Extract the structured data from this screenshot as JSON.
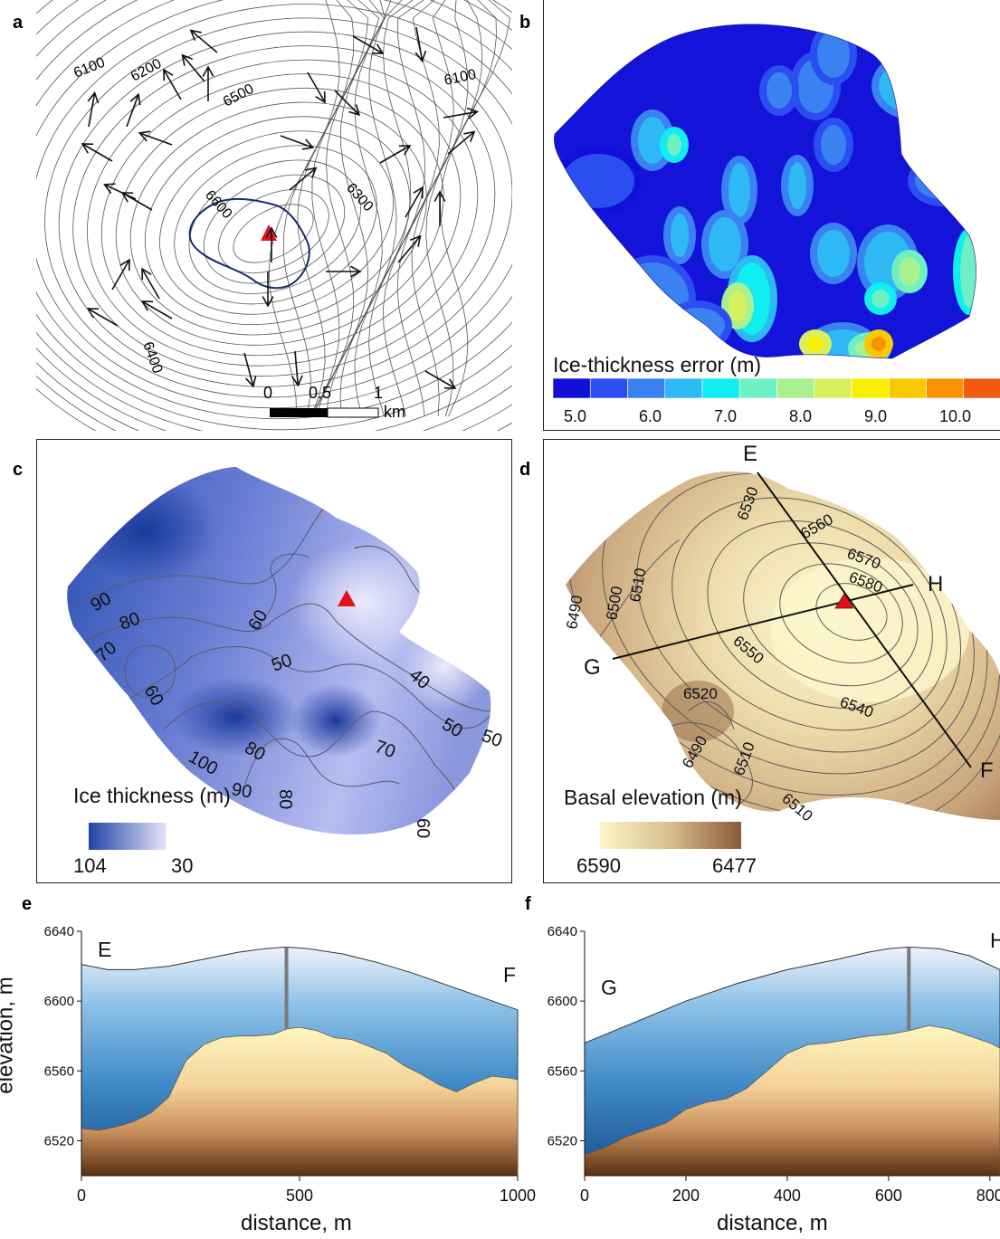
{
  "panels": {
    "a": {
      "letter": "a",
      "contour_labels": [
        "6100",
        "6200",
        "6500",
        "6100",
        "6600",
        "6300",
        "6400"
      ],
      "scalebar": {
        "ticks": [
          "0",
          "0.5",
          "1"
        ],
        "unit": "km"
      }
    },
    "b": {
      "letter": "b",
      "legend_title": "Ice-thickness error (m)",
      "colorbar_ticks": [
        "5.0",
        "6.0",
        "7.0",
        "8.0",
        "9.0",
        "10.0"
      ],
      "colors": [
        "#1010d8",
        "#2a4ef0",
        "#3a82f2",
        "#2eb8f4",
        "#11eef2",
        "#6ff0c2",
        "#a8f090",
        "#d6f060",
        "#f8f000",
        "#f8c800",
        "#f89400",
        "#f05a10"
      ]
    },
    "c": {
      "letter": "c",
      "legend_title": "Ice thickness (m)",
      "legend_min": "104",
      "legend_max": "30",
      "contour_labels": [
        "90",
        "80",
        "70",
        "60",
        "50",
        "60",
        "40",
        "80",
        "100",
        "90",
        "80",
        "70",
        "50",
        "50",
        "60"
      ],
      "colors": {
        "dark": "#1f44a8",
        "light": "#e6e6fb"
      }
    },
    "d": {
      "letter": "d",
      "legend_title": "Basal elevation (m)",
      "legend_min": "6590",
      "legend_max": "6477",
      "contour_labels": [
        "6530",
        "6560",
        "6570",
        "6580",
        "6510",
        "6500",
        "6490",
        "6550",
        "6520",
        "6540",
        "6490",
        "6510",
        "6510"
      ],
      "profile_points": {
        "E": "E",
        "F": "F",
        "G": "G",
        "H": "H"
      },
      "colors": {
        "light": "#fdf6c8",
        "dark": "#8a5a3a"
      }
    },
    "e": {
      "letter": "e",
      "start_label": "E",
      "end_label": "F",
      "ylabel": "elevation, m",
      "xlabel": "distance, m",
      "y_ticks": [
        "6640",
        "6600",
        "6560",
        "6520"
      ],
      "x_ticks": [
        "0",
        "500",
        "1000"
      ]
    },
    "f": {
      "letter": "f",
      "start_label": "G",
      "end_label": "H",
      "xlabel": "distance, m",
      "y_ticks": [
        "6640",
        "6600",
        "6560",
        "6520"
      ],
      "x_ticks": [
        "0",
        "200",
        "400",
        "600",
        "800"
      ]
    }
  },
  "chart_data": [
    {
      "type": "area",
      "panel": "e",
      "xlabel": "distance, m",
      "ylabel": "elevation, m",
      "xlim": [
        0,
        1000
      ],
      "ylim": [
        6500,
        6640
      ],
      "series": [
        {
          "name": "surface",
          "x": [
            0,
            60,
            120,
            200,
            280,
            360,
            420,
            470,
            520,
            600,
            680,
            760,
            840,
            920,
            1000
          ],
          "y": [
            6621,
            6618,
            6618,
            6620,
            6624,
            6628,
            6630,
            6631,
            6630,
            6627,
            6622,
            6616,
            6609,
            6602,
            6595
          ]
        },
        {
          "name": "bed",
          "x": [
            0,
            40,
            80,
            120,
            160,
            200,
            240,
            280,
            320,
            360,
            400,
            440,
            470,
            500,
            540,
            580,
            620,
            660,
            700,
            740,
            780,
            820,
            860,
            900,
            940,
            980,
            1000
          ],
          "y": [
            6527,
            6526,
            6528,
            6531,
            6536,
            6545,
            6566,
            6575,
            6579,
            6580,
            6580,
            6581,
            6584,
            6585,
            6583,
            6579,
            6578,
            6574,
            6570,
            6563,
            6558,
            6552,
            6548,
            6553,
            6557,
            6556,
            6555
          ]
        }
      ]
    },
    {
      "type": "area",
      "panel": "f",
      "xlabel": "distance, m",
      "xlim": [
        0,
        820
      ],
      "ylim": [
        6500,
        6640
      ],
      "series": [
        {
          "name": "surface",
          "x": [
            0,
            100,
            200,
            300,
            400,
            500,
            560,
            600,
            640,
            700,
            760,
            820
          ],
          "y": [
            6576,
            6588,
            6600,
            6610,
            6618,
            6624,
            6628,
            6630,
            6631,
            6630,
            6626,
            6618
          ]
        },
        {
          "name": "bed",
          "x": [
            0,
            40,
            80,
            120,
            160,
            200,
            240,
            280,
            320,
            360,
            400,
            440,
            480,
            520,
            560,
            600,
            640,
            680,
            720,
            760,
            800,
            820
          ],
          "y": [
            6512,
            6516,
            6522,
            6526,
            6530,
            6538,
            6542,
            6544,
            6550,
            6560,
            6570,
            6575,
            6576,
            6578,
            6580,
            6581,
            6583,
            6586,
            6584,
            6580,
            6576,
            6573
          ]
        }
      ]
    }
  ]
}
